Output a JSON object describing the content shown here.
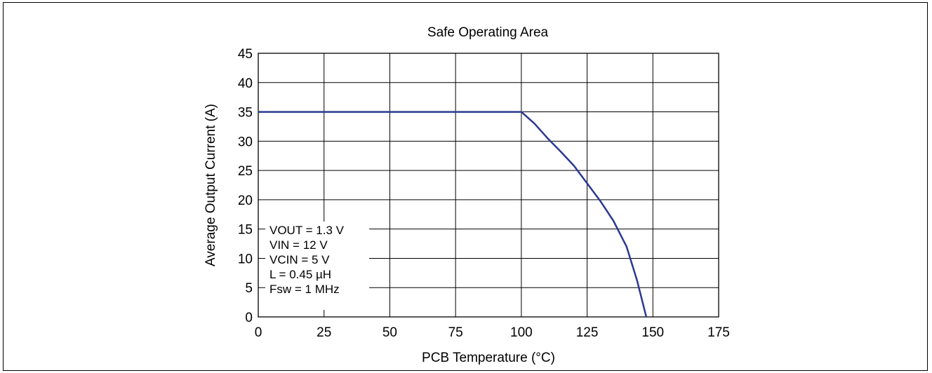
{
  "chart_data": {
    "type": "line",
    "title": "Safe Operating Area",
    "xlabel": "PCB Temperature (°C)",
    "ylabel": "Average Output Current (A)",
    "xlim": [
      0,
      175
    ],
    "ylim": [
      0,
      45
    ],
    "xticks": [
      0,
      25,
      50,
      75,
      100,
      125,
      150,
      175
    ],
    "yticks": [
      0,
      5,
      10,
      15,
      20,
      25,
      30,
      35,
      40,
      45
    ],
    "grid": true,
    "series": [
      {
        "color": "#2b3990",
        "x": [
          0,
          100,
          105,
          110,
          115,
          120,
          125,
          130,
          135,
          140,
          144,
          147.5
        ],
        "y": [
          35,
          35,
          33,
          30.5,
          28.2,
          25.8,
          22.8,
          19.8,
          16.4,
          12,
          6.2,
          0
        ]
      }
    ],
    "annotation": [
      "VOUT = 1.3 V",
      "VIN = 12 V",
      "VCIN = 5 V",
      "L = 0.45 µH",
      "Fsw = 1 MHz"
    ]
  }
}
